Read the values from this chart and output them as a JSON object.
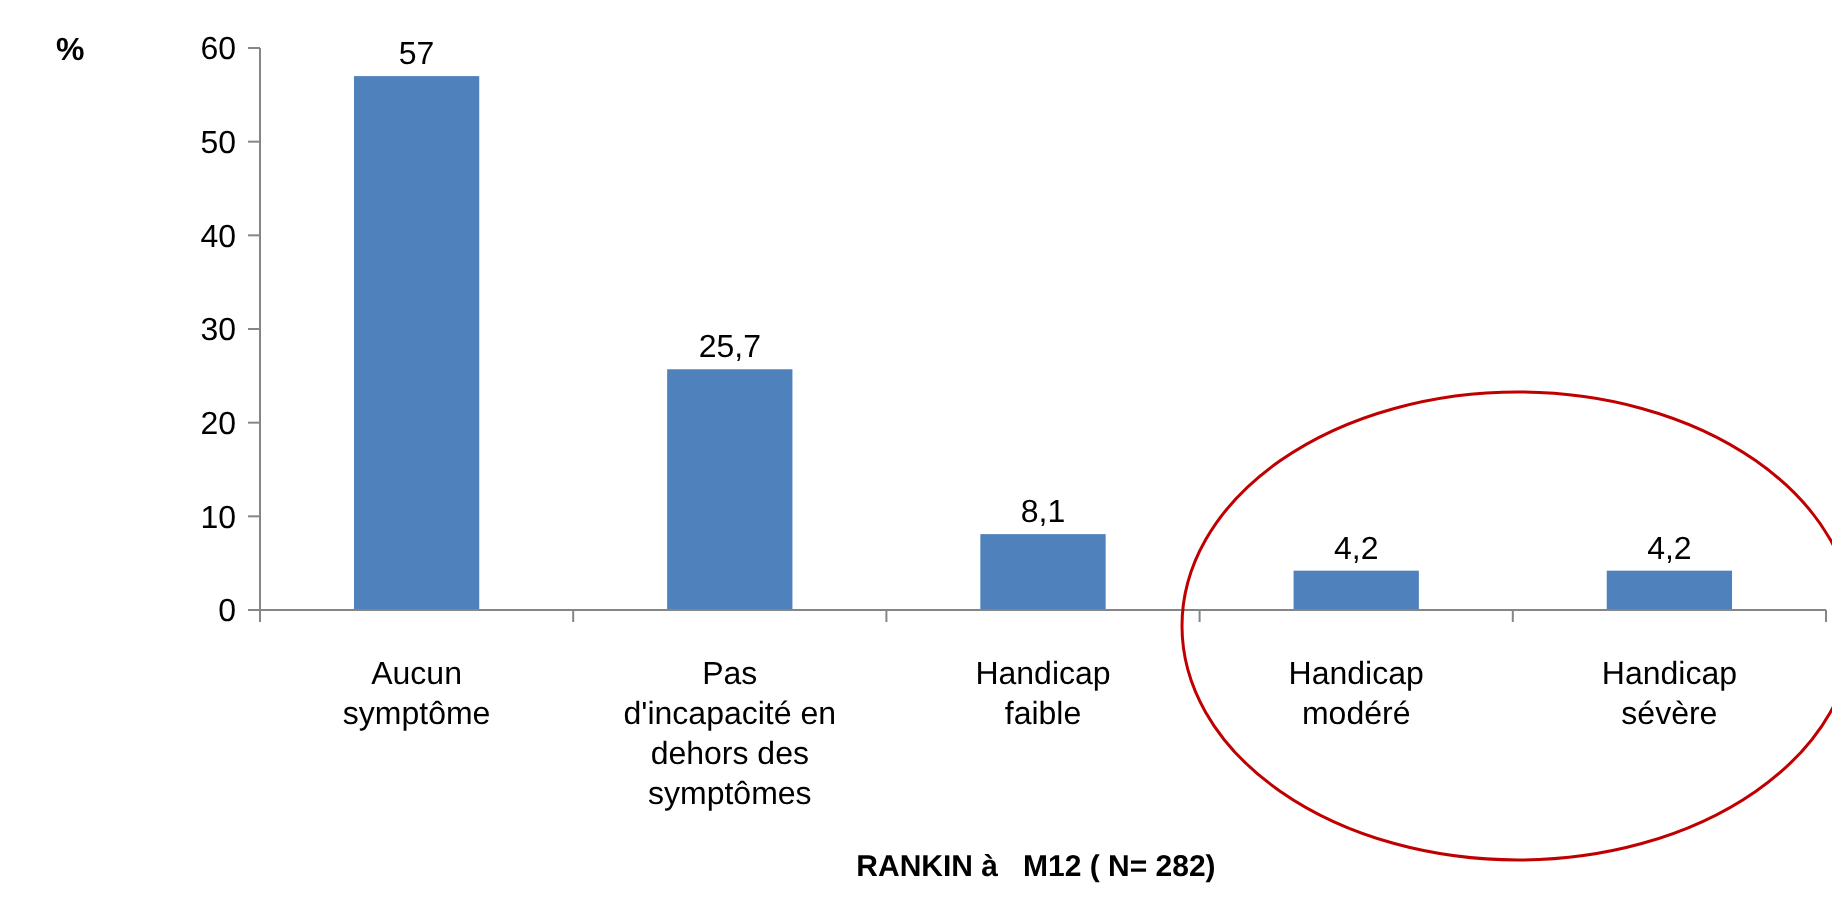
{
  "chart_data": {
    "type": "bar",
    "xlabel": "RANKIN à   M12 ( N= 282)",
    "ylabel": "%",
    "categories": [
      "Aucun\nsymptôme",
      "Pas\nd'incapacité en\ndehors des\nsymptômes",
      "Handicap\nfaible",
      "Handicap\nmodéré",
      "Handicap\nsévère"
    ],
    "values": [
      57,
      25.7,
      8.1,
      4.2,
      4.2
    ],
    "value_labels": [
      "57",
      "25,7",
      "8,1",
      "4,2",
      "4,2"
    ],
    "color": "#4f81bd",
    "ylim": [
      0,
      60
    ],
    "yticks": [
      0,
      10,
      20,
      30,
      40,
      50,
      60
    ],
    "grid": false
  }
}
